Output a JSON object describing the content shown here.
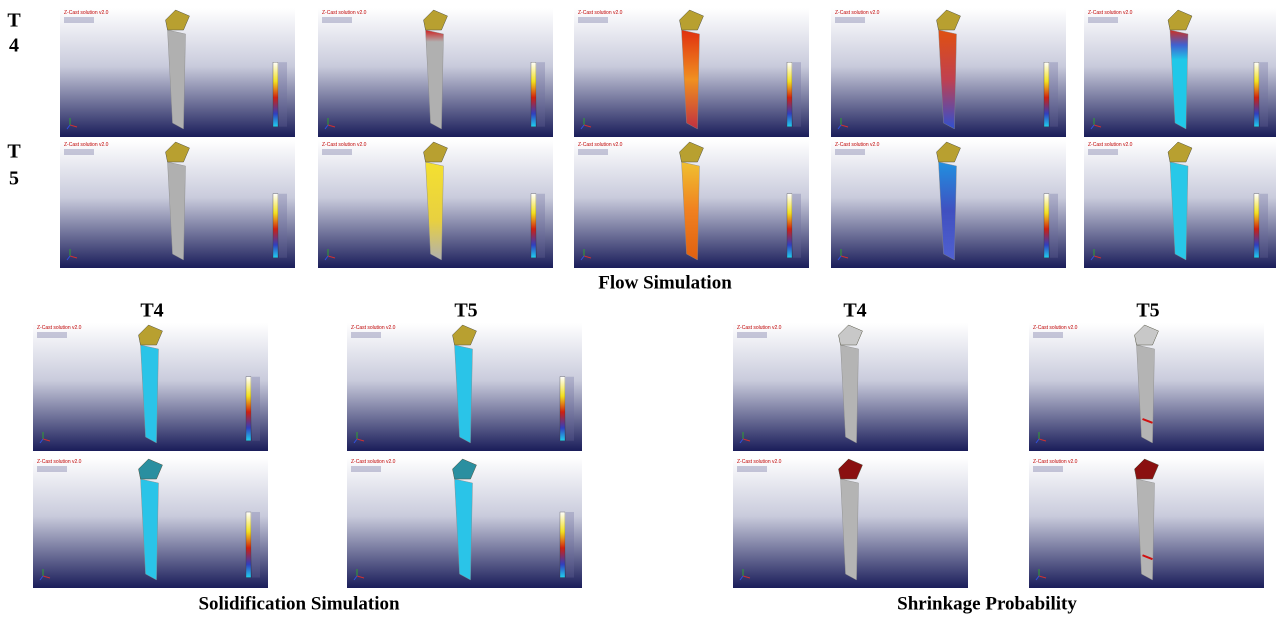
{
  "row_labels": [
    [
      "T",
      "4"
    ],
    [
      "T",
      "5"
    ]
  ],
  "flow": {
    "caption": "Flow Simulation"
  },
  "solidification": {
    "labels": [
      "T4",
      "T5"
    ],
    "caption": "Solidification Simulation"
  },
  "shrinkage": {
    "labels": [
      "T4",
      "T5"
    ],
    "caption": "Shrinkage Probability"
  },
  "panel_header": "Z-Cast solution v2.0"
}
